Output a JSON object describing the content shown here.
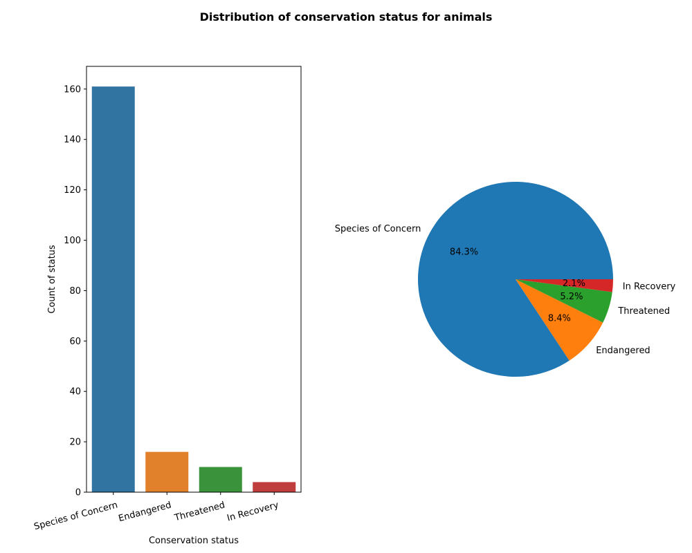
{
  "figure": {
    "title": "Distribution of conservation status for animals"
  },
  "chart_data": [
    {
      "type": "bar",
      "categories": [
        "Species of Concern",
        "Endangered",
        "Threatened",
        "In Recovery"
      ],
      "values": [
        161,
        16,
        10,
        4
      ],
      "xlabel": "Conservation status",
      "ylabel": "Count of status",
      "ylim": [
        0,
        169
      ],
      "yticks": [
        0,
        20,
        40,
        60,
        80,
        100,
        120,
        140,
        160
      ],
      "colors": [
        "#3274a1",
        "#e1812c",
        "#3a923a",
        "#c03d3e"
      ],
      "grid": false,
      "xtick_rotation_deg": 15
    },
    {
      "type": "pie",
      "labels": [
        "Species of Concern",
        "Endangered",
        "Threatened",
        "In Recovery"
      ],
      "values": [
        161,
        16,
        10,
        4
      ],
      "percent_labels": [
        "84.3%",
        "8.4%",
        "5.2%",
        "2.1%"
      ],
      "colors": [
        "#1f77b4",
        "#ff7f0e",
        "#2ca02c",
        "#d62728"
      ],
      "direction": "counterclockwise",
      "start_angle_deg": 0
    }
  ]
}
